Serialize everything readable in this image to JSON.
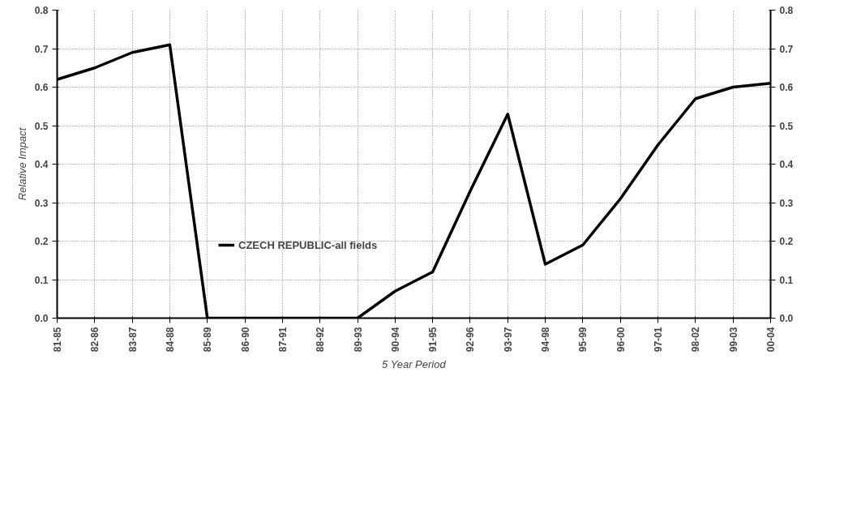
{
  "chart_data": {
    "type": "line",
    "xlabel": "5 Year Period",
    "ylabel": "Relative Impact",
    "categories": [
      "81-85",
      "82-86",
      "83-87",
      "84-88",
      "85-89",
      "86-90",
      "87-91",
      "88-92",
      "89-93",
      "90-94",
      "91-95",
      "92-96",
      "93-97",
      "94-98",
      "95-99",
      "96-00",
      "97-01",
      "98-02",
      "99-03",
      "00-04"
    ],
    "series": [
      {
        "name": "CZECH REPUBLIC-all fields",
        "color": "#000000",
        "values": [
          0.62,
          0.65,
          0.69,
          0.71,
          0.0,
          0.0,
          0.0,
          0.0,
          0.0,
          0.07,
          0.12,
          0.33,
          0.53,
          0.14,
          0.19,
          0.31,
          0.45,
          0.57,
          0.6,
          0.61
        ]
      }
    ],
    "ylim": [
      0,
      0.8
    ],
    "yticks": [
      {
        "value": 0,
        "label": "0.0"
      },
      {
        "value": 0.1,
        "label": "0.1"
      },
      {
        "value": 0.2,
        "label": "0.2"
      },
      {
        "value": 0.3,
        "label": "0.3"
      },
      {
        "value": 0.4,
        "label": "0.4"
      },
      {
        "value": 0.5,
        "label": "0.5"
      },
      {
        "value": 0.6,
        "label": "0.6"
      },
      {
        "value": 0.7,
        "label": "0.7"
      },
      {
        "value": 0.8,
        "label": "0.8"
      }
    ],
    "y2lim": [
      0,
      0.8
    ],
    "y2ticks": [
      {
        "value": 0,
        "label": "0.0"
      },
      {
        "value": 0.1,
        "label": "0.1"
      },
      {
        "value": 0.2,
        "label": "0.2"
      },
      {
        "value": 0.3,
        "label": "0.3"
      },
      {
        "value": 0.4,
        "label": "0.4"
      },
      {
        "value": 0.5,
        "label": "0.5"
      },
      {
        "value": 0.6,
        "label": "0.6"
      },
      {
        "value": 0.7,
        "label": "0.7"
      },
      {
        "value": 0.8,
        "label": "0.8"
      }
    ],
    "grid": true,
    "legend": "bottom",
    "marker": "none",
    "line_style": "solid"
  }
}
